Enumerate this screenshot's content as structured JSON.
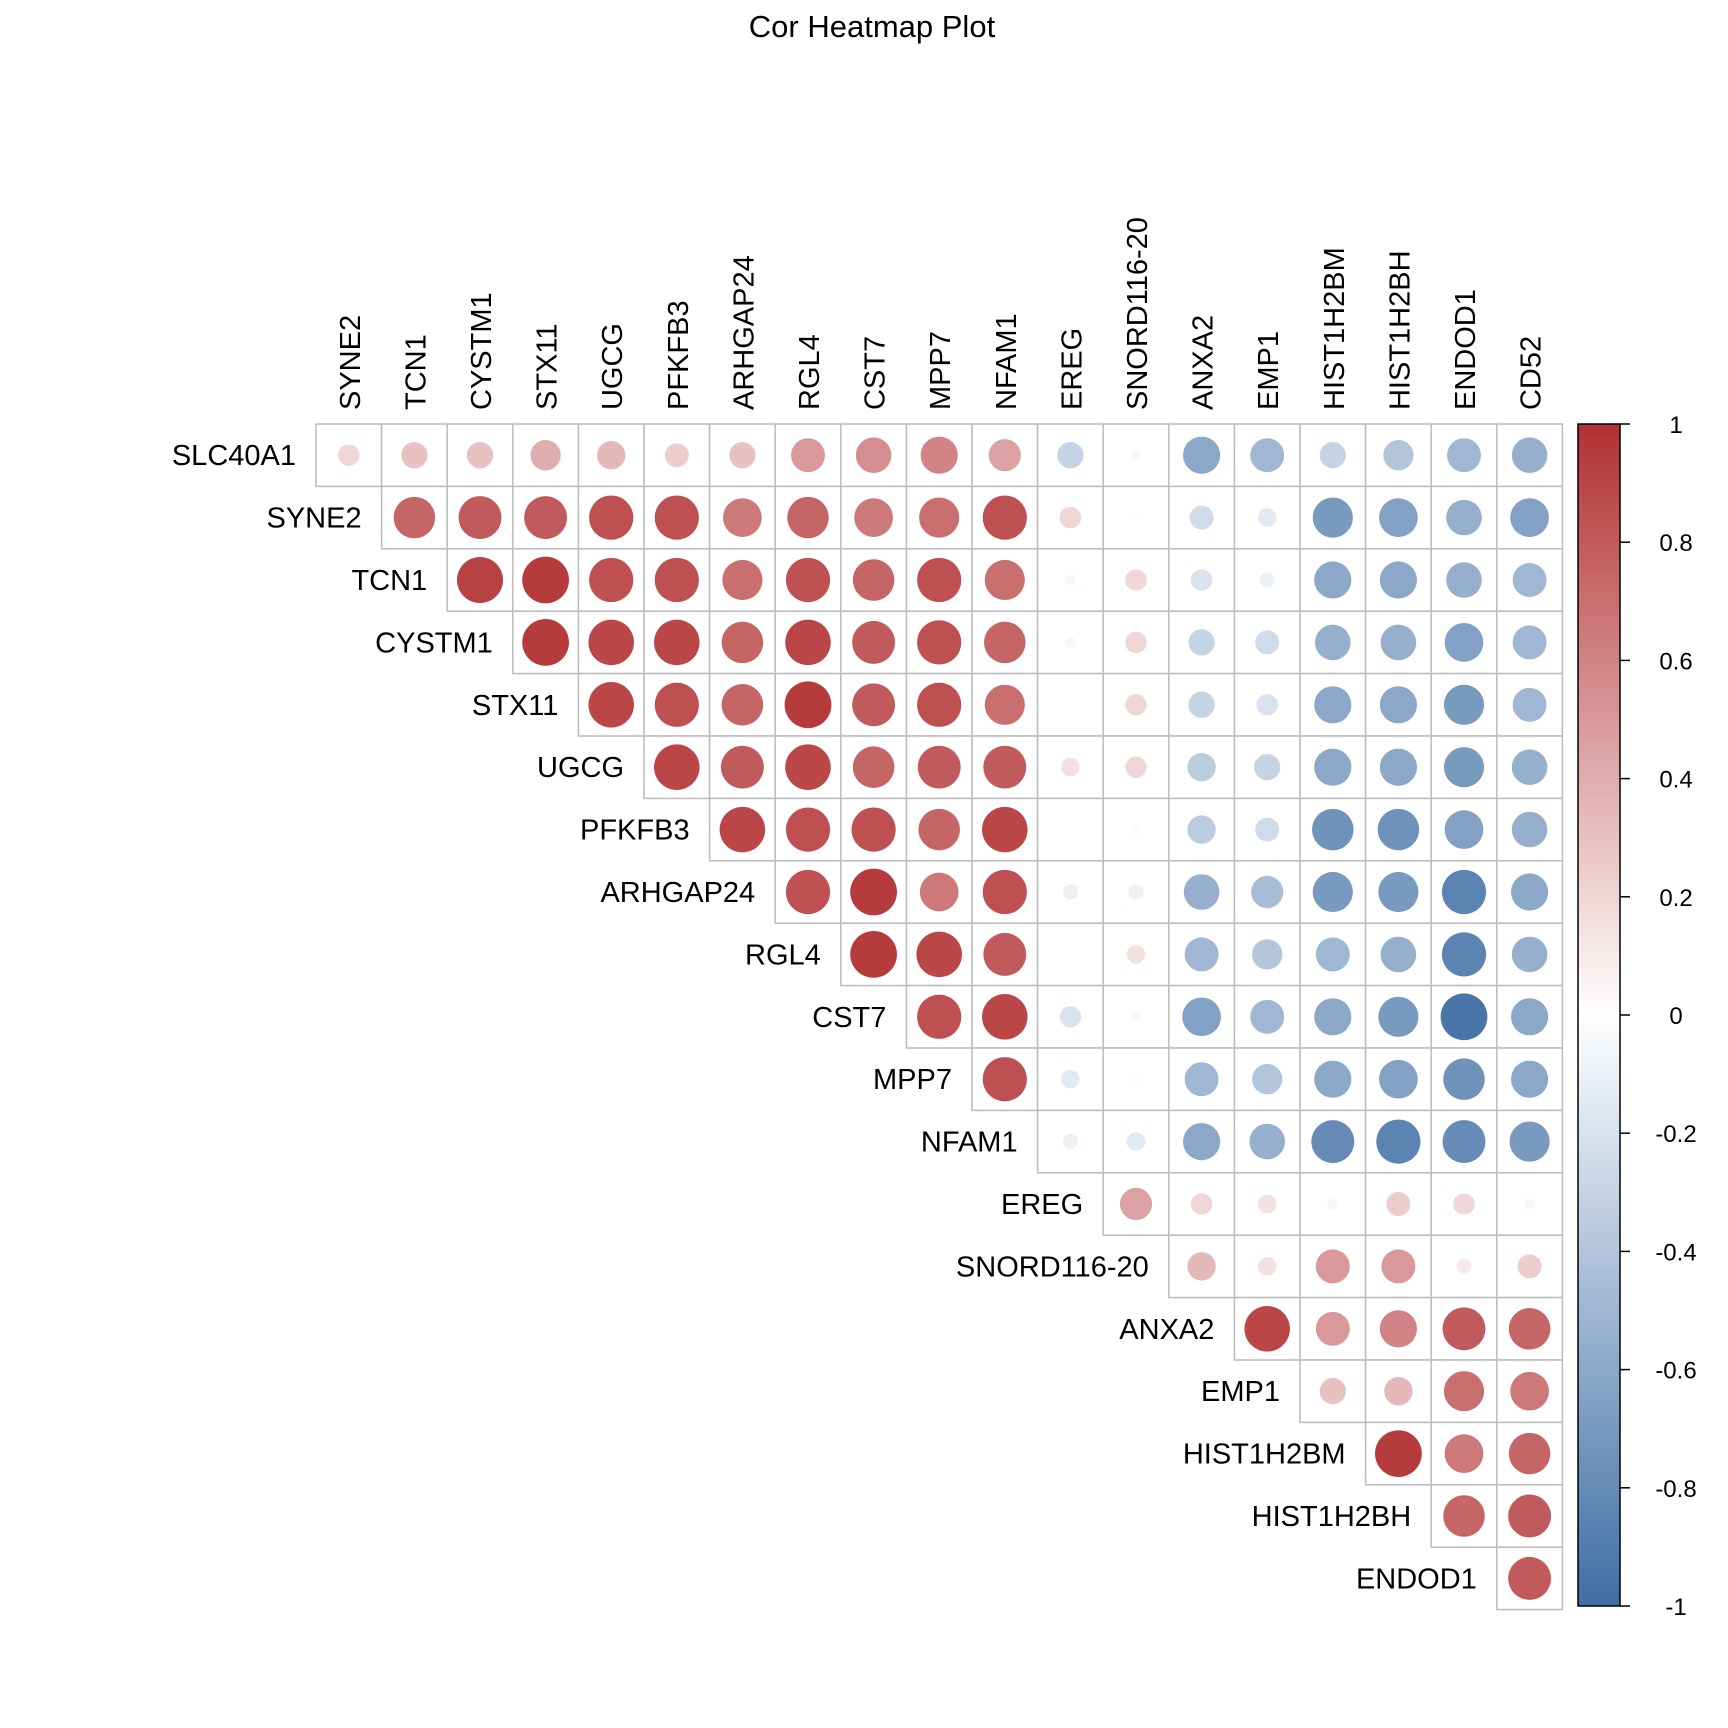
{
  "chart_data": {
    "type": "heatmap",
    "subtype": "correlation-circles-upper-triangle",
    "title": "Cor Heatmap Plot",
    "row_labels": [
      "SLC40A1",
      "SYNE2",
      "TCN1",
      "CYSTM1",
      "STX11",
      "UGCG",
      "PFKFB3",
      "ARHGAP24",
      "RGL4",
      "CST7",
      "MPP7",
      "NFAM1",
      "EREG",
      "SNORD116-20",
      "ANXA2",
      "EMP1",
      "HIST1H2BM",
      "HIST1H2BH",
      "ENDOD1"
    ],
    "col_labels": [
      "SYNE2",
      "TCN1",
      "CYSTM1",
      "STX11",
      "UGCG",
      "PFKFB3",
      "ARHGAP24",
      "RGL4",
      "CST7",
      "MPP7",
      "NFAM1",
      "EREG",
      "SNORD116-20",
      "ANXA2",
      "EMP1",
      "HIST1H2BM",
      "HIST1H2BH",
      "ENDOD1",
      "CD52"
    ],
    "values": [
      [
        0.2,
        0.3,
        0.3,
        0.4,
        0.35,
        0.25,
        0.3,
        0.5,
        0.55,
        0.6,
        0.45,
        -0.3,
        -0.05,
        -0.6,
        -0.5,
        -0.3,
        -0.4,
        -0.5,
        -0.55
      ],
      [
        null,
        0.75,
        0.8,
        0.8,
        0.85,
        0.85,
        0.65,
        0.75,
        0.65,
        0.7,
        0.85,
        0.2,
        -0.02,
        -0.25,
        -0.15,
        -0.7,
        -0.65,
        -0.55,
        -0.65
      ],
      [
        null,
        null,
        0.92,
        0.95,
        0.85,
        0.85,
        0.7,
        0.85,
        0.75,
        0.85,
        0.7,
        0.05,
        0.2,
        -0.2,
        -0.1,
        -0.6,
        -0.6,
        -0.55,
        -0.5
      ],
      [
        null,
        null,
        null,
        0.95,
        0.9,
        0.9,
        0.75,
        0.9,
        0.8,
        0.85,
        0.75,
        0.05,
        0.2,
        -0.3,
        -0.25,
        -0.55,
        -0.55,
        -0.65,
        -0.5
      ],
      [
        null,
        null,
        null,
        null,
        0.9,
        0.85,
        0.75,
        0.95,
        0.8,
        0.85,
        0.7,
        0.0,
        0.2,
        -0.3,
        -0.2,
        -0.6,
        -0.6,
        -0.7,
        -0.5
      ],
      [
        null,
        null,
        null,
        null,
        null,
        0.9,
        0.8,
        0.9,
        0.75,
        0.8,
        0.8,
        0.15,
        0.2,
        -0.35,
        -0.3,
        -0.6,
        -0.6,
        -0.7,
        -0.55
      ],
      [
        null,
        null,
        null,
        null,
        null,
        null,
        0.9,
        0.85,
        0.85,
        0.75,
        0.9,
        0.0,
        0.03,
        -0.35,
        -0.25,
        -0.75,
        -0.75,
        -0.65,
        -0.55
      ],
      [
        null,
        null,
        null,
        null,
        null,
        null,
        null,
        0.85,
        0.95,
        0.65,
        0.85,
        -0.1,
        -0.1,
        -0.55,
        -0.45,
        -0.7,
        -0.7,
        -0.85,
        -0.6
      ],
      [
        null,
        null,
        null,
        null,
        null,
        null,
        null,
        null,
        0.95,
        0.9,
        0.8,
        0.0,
        0.15,
        -0.5,
        -0.4,
        -0.5,
        -0.55,
        -0.85,
        -0.55
      ],
      [
        null,
        null,
        null,
        null,
        null,
        null,
        null,
        null,
        null,
        0.85,
        0.9,
        -0.2,
        -0.05,
        -0.65,
        -0.5,
        -0.6,
        -0.7,
        -0.95,
        -0.6
      ],
      [
        null,
        null,
        null,
        null,
        null,
        null,
        null,
        null,
        null,
        null,
        0.85,
        -0.15,
        -0.02,
        -0.5,
        -0.4,
        -0.6,
        -0.65,
        -0.75,
        -0.6
      ],
      [
        null,
        null,
        null,
        null,
        null,
        null,
        null,
        null,
        null,
        null,
        null,
        -0.1,
        -0.15,
        -0.6,
        -0.55,
        -0.8,
        -0.85,
        -0.8,
        -0.7
      ],
      [
        null,
        null,
        null,
        null,
        null,
        null,
        null,
        null,
        null,
        null,
        null,
        null,
        0.45,
        0.2,
        0.15,
        0.05,
        0.25,
        0.2,
        -0.05
      ],
      [
        null,
        null,
        null,
        null,
        null,
        null,
        null,
        null,
        null,
        null,
        null,
        null,
        null,
        0.35,
        0.15,
        0.5,
        0.5,
        0.1,
        0.25
      ],
      [
        null,
        null,
        null,
        null,
        null,
        null,
        null,
        null,
        null,
        null,
        null,
        null,
        null,
        null,
        0.9,
        0.5,
        0.6,
        0.8,
        0.75
      ],
      [
        null,
        null,
        null,
        null,
        null,
        null,
        null,
        null,
        null,
        null,
        null,
        null,
        null,
        null,
        null,
        0.3,
        0.35,
        0.7,
        0.65
      ],
      [
        null,
        null,
        null,
        null,
        null,
        null,
        null,
        null,
        null,
        null,
        null,
        null,
        null,
        null,
        null,
        null,
        0.95,
        0.65,
        0.75
      ],
      [
        null,
        null,
        null,
        null,
        null,
        null,
        null,
        null,
        null,
        null,
        null,
        null,
        null,
        null,
        null,
        null,
        null,
        0.75,
        0.8
      ],
      [
        null,
        null,
        null,
        null,
        null,
        null,
        null,
        null,
        null,
        null,
        null,
        null,
        null,
        null,
        null,
        null,
        null,
        null,
        0.8
      ]
    ],
    "colorbar": {
      "range": [
        -1,
        1
      ],
      "ticks": [
        "1",
        "0.8",
        "0.6",
        "0.4",
        "0.2",
        "0",
        "-0.2",
        "-0.4",
        "-0.6",
        "-0.8",
        "-1"
      ],
      "colors": {
        "negative": "#3f6ea4",
        "zero": "#ffffff",
        "positive": "#b23133"
      }
    },
    "grid_color": "#bfbfbf"
  }
}
